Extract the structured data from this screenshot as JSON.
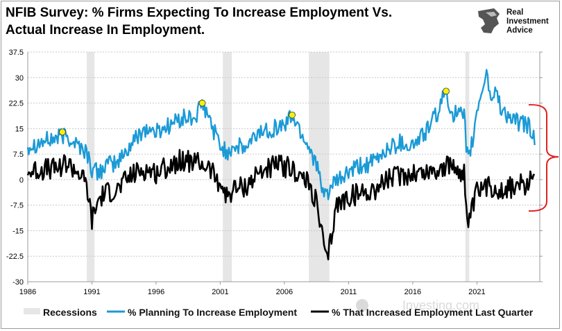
{
  "title": "NFIB Survey:  % Firms Expecting To Increase Employment Vs. Actual Increase In Employment.",
  "logo": {
    "icon": "eagle-head-icon",
    "lines": [
      "Real",
      "Investment",
      "Advice"
    ]
  },
  "colors": {
    "planning": "#1b9ad6",
    "actual": "#000000",
    "recession": "#e6e6e6",
    "marker": "#f5f00f",
    "bracket": "#e02020"
  },
  "chart_data": {
    "type": "line",
    "x_range": [
      1986,
      2025.9
    ],
    "ylim": [
      -30,
      37.5
    ],
    "y_ticks": [
      "37.5",
      "30",
      "22.5",
      "15",
      "7.5",
      "0",
      "-7.5",
      "-15",
      "-22.5",
      "-30"
    ],
    "x_ticks": [
      "1986",
      "1991",
      "1996",
      "2001",
      "2006",
      "2011",
      "2016",
      "2021"
    ],
    "grid": true,
    "legend_position": "bottom",
    "recessions": [
      [
        1990.6,
        1991.2
      ],
      [
        2001.2,
        2001.9
      ],
      [
        2007.9,
        2009.5
      ],
      [
        2020.1,
        2020.4
      ]
    ],
    "series": [
      {
        "name": "% Planning To Increase Employment",
        "color": "#1b9ad6",
        "points": [
          [
            1986.0,
            10
          ],
          [
            1987.0,
            11
          ],
          [
            1988.0,
            12
          ],
          [
            1989.0,
            13
          ],
          [
            1990.0,
            10
          ],
          [
            1990.6,
            8
          ],
          [
            1991.0,
            3
          ],
          [
            1991.5,
            2
          ],
          [
            1992.0,
            4
          ],
          [
            1993.0,
            5
          ],
          [
            1994.0,
            10
          ],
          [
            1995.0,
            15
          ],
          [
            1996.0,
            14
          ],
          [
            1997.0,
            16
          ],
          [
            1998.0,
            18
          ],
          [
            1999.0,
            18
          ],
          [
            1999.6,
            22
          ],
          [
            2000.0,
            19
          ],
          [
            2001.0,
            10
          ],
          [
            2001.5,
            8
          ],
          [
            2002.0,
            10
          ],
          [
            2003.0,
            9
          ],
          [
            2004.0,
            14
          ],
          [
            2005.0,
            15
          ],
          [
            2006.0,
            16
          ],
          [
            2006.6,
            19
          ],
          [
            2007.0,
            16
          ],
          [
            2008.0,
            9
          ],
          [
            2008.5,
            5
          ],
          [
            2009.0,
            -5
          ],
          [
            2009.5,
            -3
          ],
          [
            2010.0,
            -1
          ],
          [
            2011.0,
            2
          ],
          [
            2012.0,
            4
          ],
          [
            2013.0,
            5
          ],
          [
            2014.0,
            9
          ],
          [
            2015.0,
            11
          ],
          [
            2016.0,
            10
          ],
          [
            2017.0,
            14
          ],
          [
            2018.0,
            20
          ],
          [
            2018.6,
            26
          ],
          [
            2019.0,
            20
          ],
          [
            2020.0,
            18
          ],
          [
            2020.3,
            5
          ],
          [
            2020.7,
            12
          ],
          [
            2021.0,
            20
          ],
          [
            2021.5,
            28
          ],
          [
            2021.8,
            32
          ],
          [
            2022.0,
            24
          ],
          [
            2022.5,
            26
          ],
          [
            2023.0,
            20
          ],
          [
            2024.0,
            17
          ],
          [
            2025.0,
            16
          ],
          [
            2025.5,
            12
          ]
        ]
      },
      {
        "name": "% That Increased Employment Last Quarter",
        "color": "#000000",
        "points": [
          [
            1986.0,
            2
          ],
          [
            1987.0,
            3
          ],
          [
            1988.0,
            3
          ],
          [
            1989.0,
            5
          ],
          [
            1990.0,
            2
          ],
          [
            1990.6,
            -2
          ],
          [
            1991.0,
            -12
          ],
          [
            1991.5,
            -6
          ],
          [
            1992.0,
            -4
          ],
          [
            1993.0,
            -3
          ],
          [
            1994.0,
            1
          ],
          [
            1995.0,
            3
          ],
          [
            1996.0,
            2
          ],
          [
            1997.0,
            4
          ],
          [
            1998.0,
            6
          ],
          [
            1999.0,
            5
          ],
          [
            2000.0,
            4
          ],
          [
            2001.0,
            -1
          ],
          [
            2001.5,
            -5
          ],
          [
            2002.0,
            -3
          ],
          [
            2003.0,
            -2
          ],
          [
            2004.0,
            2
          ],
          [
            2005.0,
            4
          ],
          [
            2006.0,
            4
          ],
          [
            2007.0,
            2
          ],
          [
            2008.0,
            -2
          ],
          [
            2008.5,
            -7
          ],
          [
            2009.0,
            -18
          ],
          [
            2009.3,
            -25
          ],
          [
            2009.7,
            -16
          ],
          [
            2010.0,
            -8
          ],
          [
            2011.0,
            -5
          ],
          [
            2012.0,
            -4
          ],
          [
            2013.0,
            -3
          ],
          [
            2014.0,
            0
          ],
          [
            2015.0,
            1
          ],
          [
            2016.0,
            2
          ],
          [
            2017.0,
            2
          ],
          [
            2018.0,
            3
          ],
          [
            2019.0,
            4
          ],
          [
            2020.0,
            2
          ],
          [
            2020.3,
            -15
          ],
          [
            2020.7,
            -8
          ],
          [
            2021.0,
            -4
          ],
          [
            2022.0,
            -2
          ],
          [
            2023.0,
            -3
          ],
          [
            2024.0,
            -2
          ],
          [
            2025.0,
            -1
          ],
          [
            2025.5,
            1
          ]
        ]
      }
    ],
    "markers": [
      [
        1988.7,
        14
      ],
      [
        1999.6,
        22.5
      ],
      [
        2006.6,
        19
      ],
      [
        2018.6,
        26
      ]
    ],
    "legend": [
      "Recessions",
      "% Planning To Increase Employment",
      "% That Increased Employment Last Quarter"
    ],
    "watermark": "Investing.com"
  }
}
